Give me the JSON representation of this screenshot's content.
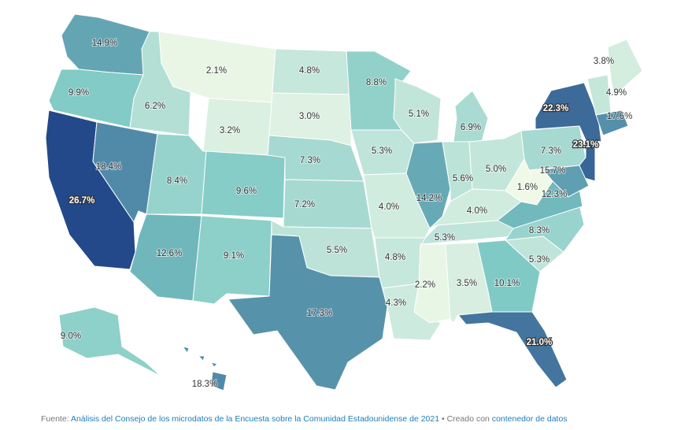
{
  "regions": {
    "WA": "14.9%",
    "OR": "9.9%",
    "CA": "26.7%",
    "NV": "18.4%",
    "ID": "6.2%",
    "MT": "2.1%",
    "WY": "3.2%",
    "UT": "8.4%",
    "CO": "9.6%",
    "AZ": "12.6%",
    "NM": "9.1%",
    "ND": "4.8%",
    "SD": "3.0%",
    "NE": "7.3%",
    "KS": "7.2%",
    "OK": "5.5%",
    "TX": "17.3%",
    "MN": "8.8%",
    "IA": "5.3%",
    "MO": "4.0%",
    "AR": "4.8%",
    "LA": "4.3%",
    "WI": "5.1%",
    "IL": "14.2%",
    "MI": "6.9%",
    "IN": "5.6%",
    "OH": "5.0%",
    "KY": "4.0%",
    "TN": "5.3%",
    "MS": "2.2%",
    "AL": "3.5%",
    "GA": "10.1%",
    "FL": "21.0%",
    "SC": "5.3%",
    "NC": "8.3%",
    "VA": "12.3%",
    "WV": "1.6%",
    "PA": "7.3%",
    "NY": "22.3%",
    "NJ": "23.1%",
    "MD": "15.7%",
    "VT": "4.9%",
    "ME": "3.8%",
    "MA": "17.6%",
    "AK": "9.0%",
    "HI": "18.3%"
  },
  "color_scale": {
    "min_value": 1.6,
    "max_value": 26.7,
    "low_color": "#f0f9e8",
    "mid_color": "#7cc8c4",
    "high_color": "#24498a"
  },
  "footer": {
    "source_prefix": "Fuente: ",
    "source_link": "Análisis del Consejo de los microdatos de la Encuesta sobre la Comunidad Estadounidense de 2021",
    "separator": " • Creado con ",
    "tool_link": "contenedor de datos"
  }
}
